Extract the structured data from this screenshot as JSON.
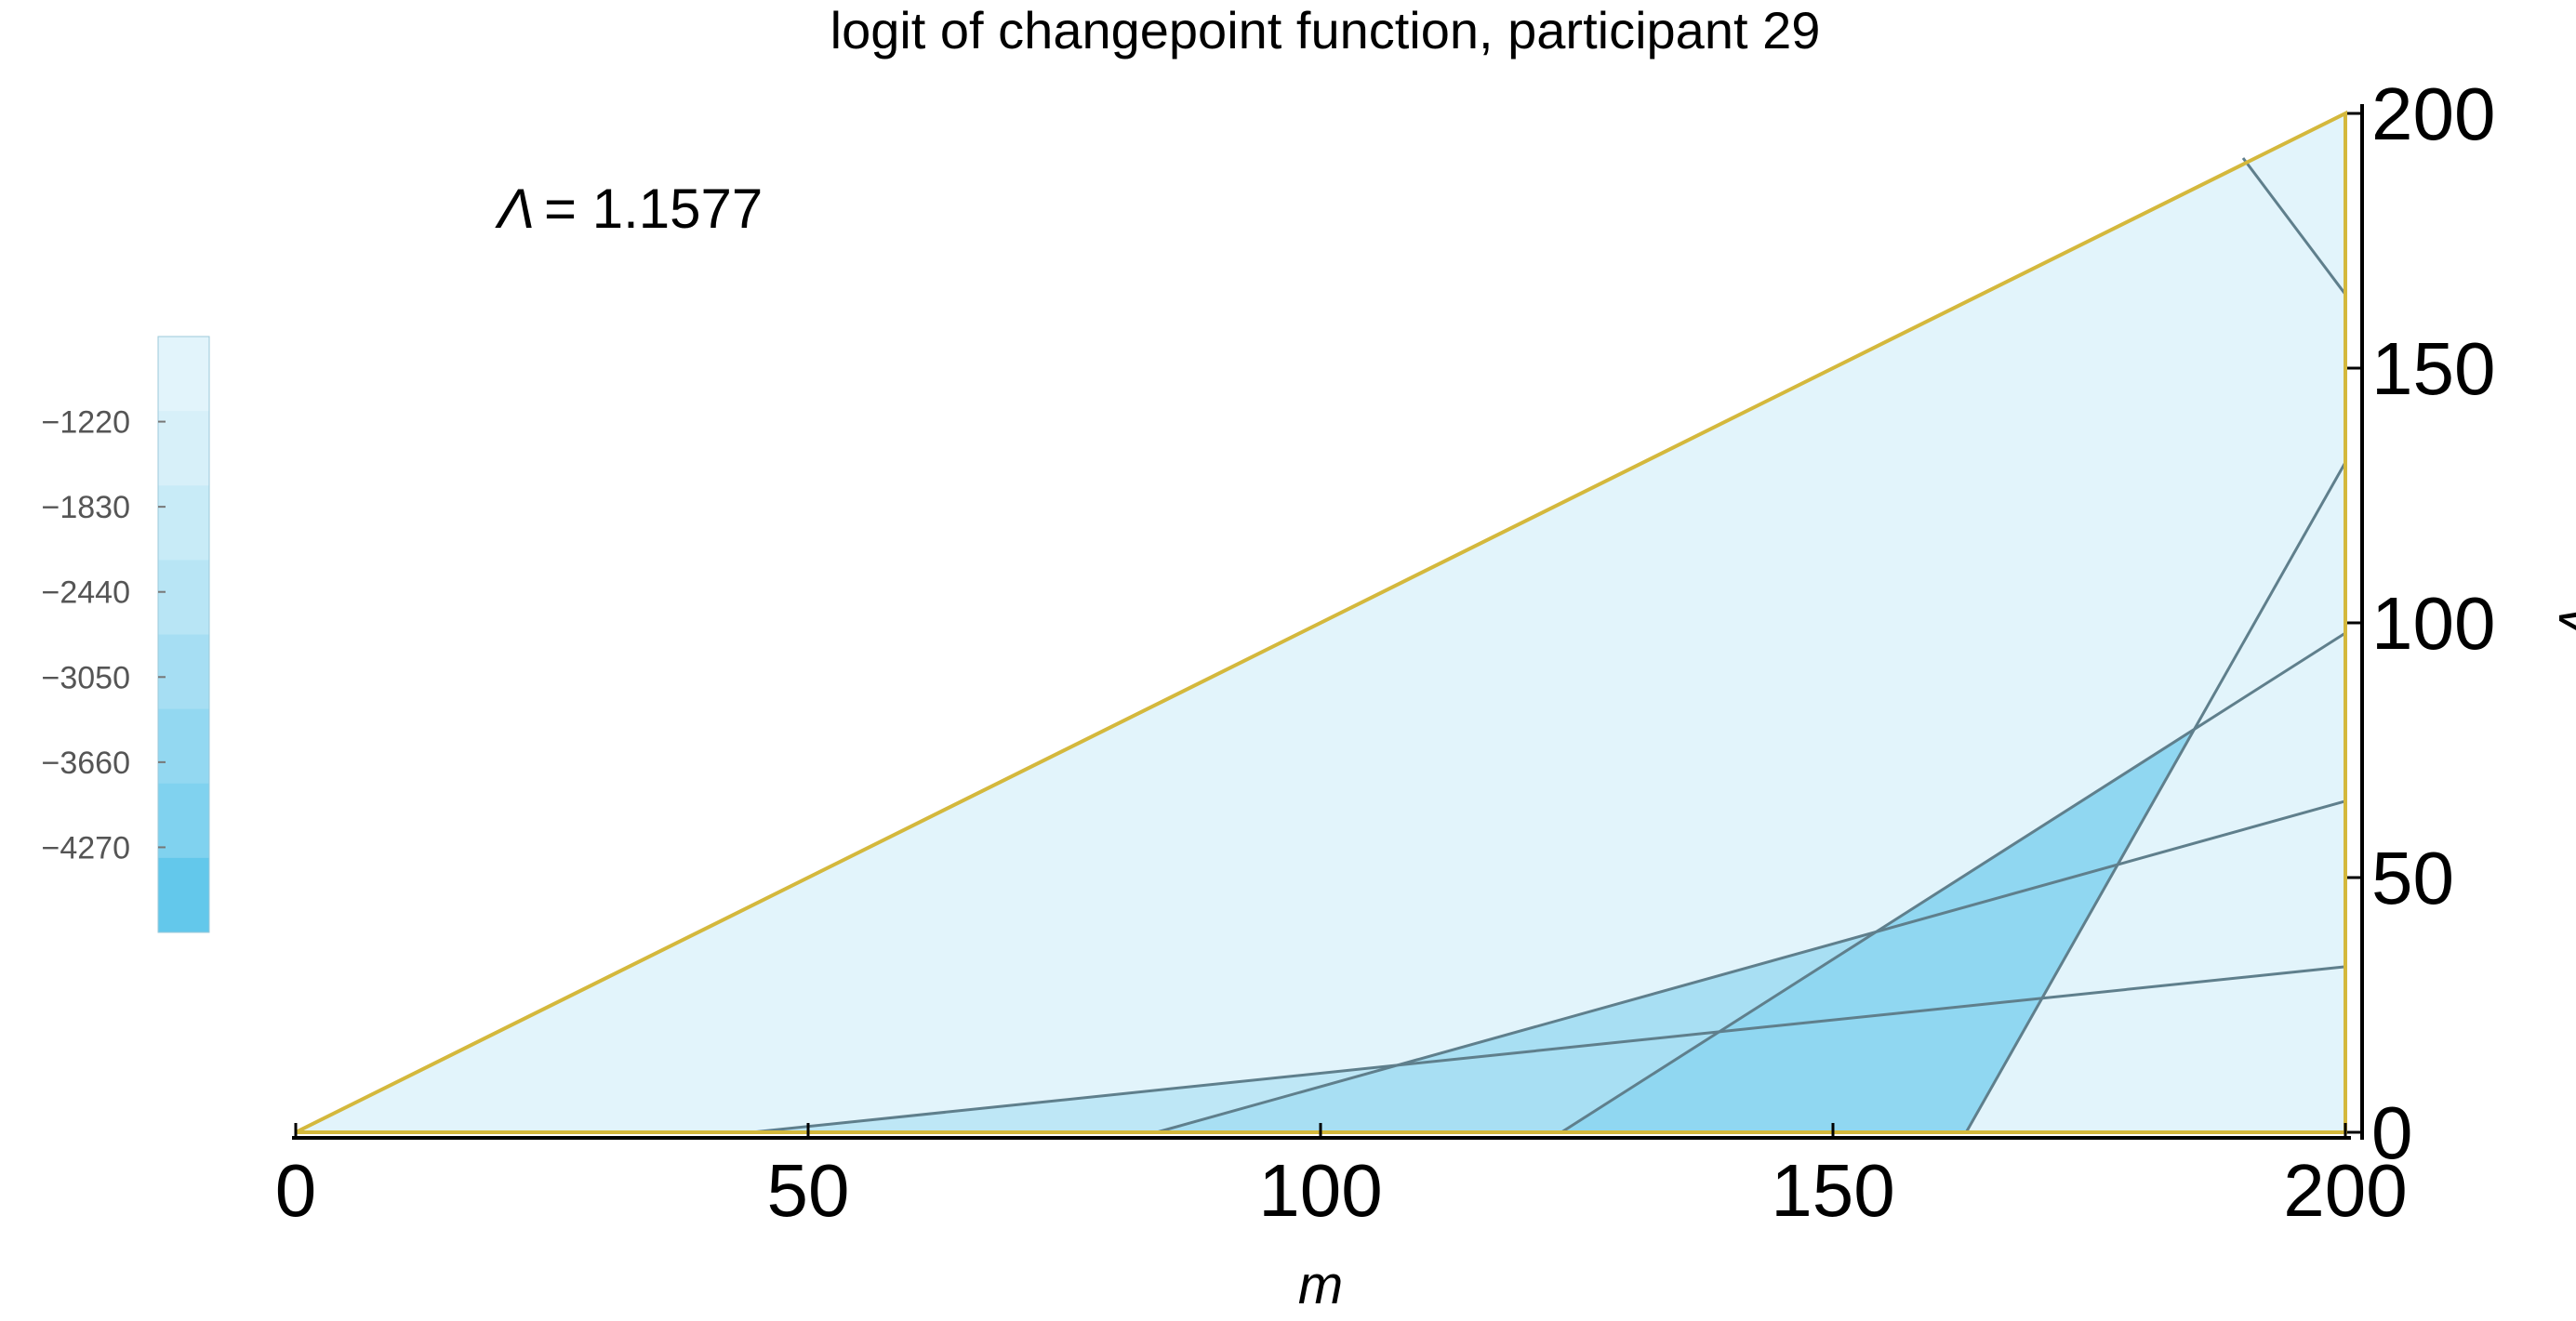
{
  "chart_data": {
    "type": "contour",
    "title": "logit of changepoint function, participant 29",
    "xlabel": "m",
    "ylabel": "v",
    "xlim": [
      0,
      200
    ],
    "ylim": [
      0,
      200
    ],
    "xticks": [
      0,
      50,
      100,
      150,
      200
    ],
    "yticks": [
      0,
      50,
      100,
      150,
      200
    ],
    "y_axis_side": "right",
    "annotation": {
      "symbol": "Λ",
      "text": "= 1.1577"
    },
    "region": "0 ≤ v ≤ m ≤ 200",
    "contour_lines": [
      {
        "x0": 5,
        "x1": 200,
        "y1": 0
      },
      {
        "x0": 44.5,
        "x1": 200,
        "y1": 32.5
      },
      {
        "x0": 84,
        "x1": 200,
        "y1": 65
      },
      {
        "x0": 123.5,
        "x1": 200,
        "y1": 98
      },
      {
        "x0": 163,
        "x1": 200,
        "y1": 131.5
      },
      {
        "x0": 200,
        "x1": 200,
        "y1": 164.5
      }
    ],
    "levels": [
      {
        "max_x0": 5,
        "color": "#e2f4fb"
      },
      {
        "max_x0": 44.5,
        "color": "#d2eef8"
      },
      {
        "max_x0": 84,
        "color": "#bee7f6"
      },
      {
        "max_x0": 123.5,
        "color": "#a8dff3"
      },
      {
        "max_x0": 163,
        "color": "#90d7f1"
      },
      {
        "max_x0": 200,
        "color": "#78d0ee"
      },
      {
        "max_x0": 1000,
        "color": "#5fc6ea"
      }
    ],
    "legend": {
      "placement": "left",
      "labels": [
        "−1220",
        "−1830",
        "−2440",
        "−3050",
        "−3660",
        "−4270"
      ],
      "colors": [
        "#e2f4fb",
        "#d7f0f9",
        "#c8ebf7",
        "#b8e5f5",
        "#a6def3",
        "#93d8f1",
        "#80d2ef",
        "#63c8eb"
      ]
    },
    "colors": {
      "boundary": "#d4b83c",
      "contour": "#5f7f8c",
      "axis": "#000000"
    }
  }
}
